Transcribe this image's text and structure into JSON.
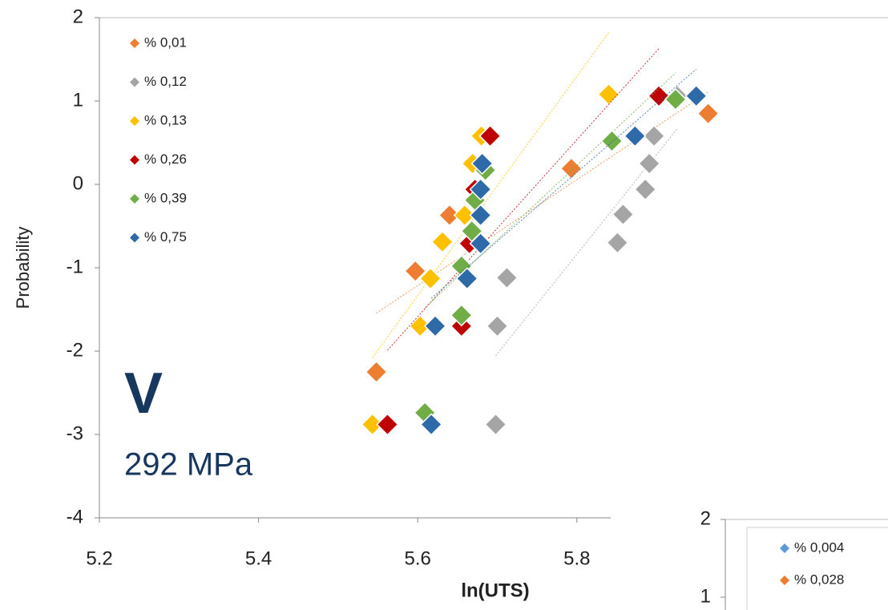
{
  "chart_data": [
    {
      "type": "scatter",
      "title": "V",
      "subtitle": "292 MPa",
      "x_label": "ln(UTS)",
      "y_label": "Probability",
      "xlim": [
        5.2,
        6.2
      ],
      "ylim": [
        -4,
        2
      ],
      "xticks": [
        5.2,
        5.4,
        5.6,
        5.8
      ],
      "yticks": [
        -4,
        -3,
        -2,
        -1,
        0,
        1,
        2
      ],
      "legend": "top-left",
      "trendlines": true,
      "series": [
        {
          "name": "% 0,01",
          "color": "#ED7D31",
          "x": [
            5.965,
            5.793,
            5.64,
            5.597,
            5.548
          ],
          "values": [
            0.85,
            0.19,
            -0.37,
            -1.04,
            -2.25
          ]
        },
        {
          "name": "% 0,12",
          "color": "#A5A5A5",
          "x": [
            5.698,
            5.7,
            5.712,
            5.851,
            5.858,
            5.886,
            5.891,
            5.897,
            5.926
          ],
          "values": [
            -2.88,
            -1.7,
            -1.12,
            -0.7,
            -0.36,
            -0.06,
            0.25,
            0.58,
            1.06
          ]
        },
        {
          "name": "% 0,13",
          "color": "#FFC000",
          "x": [
            5.543,
            5.603,
            5.616,
            5.631,
            5.659,
            5.669,
            5.68,
            5.84
          ],
          "values": [
            -2.88,
            -1.7,
            -1.13,
            -0.69,
            -0.37,
            0.25,
            0.58,
            1.08
          ]
        },
        {
          "name": "% 0,26",
          "color": "#C00000",
          "x": [
            5.562,
            5.655,
            5.665,
            5.672,
            5.691,
            5.903
          ],
          "values": [
            -2.88,
            -1.7,
            -0.71,
            -0.06,
            0.58,
            1.06
          ]
        },
        {
          "name": "% 0,39",
          "color": "#70AD47",
          "x": [
            5.609,
            5.655,
            5.655,
            5.668,
            5.672,
            5.685,
            5.844,
            5.924
          ],
          "values": [
            -2.74,
            -1.57,
            -0.98,
            -0.56,
            -0.19,
            0.17,
            0.52,
            1.02
          ]
        },
        {
          "name": "% 0,75",
          "color": "#2E6AA8",
          "x": [
            5.617,
            5.622,
            5.662,
            5.679,
            5.679,
            5.679,
            5.681,
            5.873,
            5.95
          ],
          "values": [
            -2.88,
            -1.7,
            -1.13,
            -0.71,
            -0.37,
            -0.06,
            0.25,
            0.58,
            1.06
          ]
        }
      ]
    },
    {
      "type": "scatter",
      "ylim": [
        -4,
        2
      ],
      "yticks": [
        2,
        1
      ],
      "legend": "top-left",
      "series": [
        {
          "name": "% 0,004",
          "color": "#5B9BD5",
          "x": [],
          "values": []
        },
        {
          "name": "% 0,028",
          "color": "#ED7D31",
          "x": [],
          "values": []
        }
      ]
    }
  ]
}
